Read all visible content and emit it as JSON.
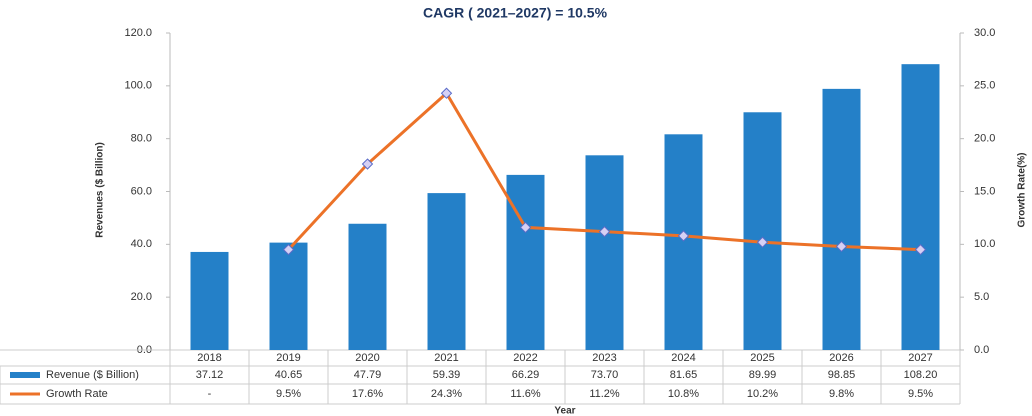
{
  "chart_data": {
    "type": "bar",
    "title": "CAGR ( 2021–2027) = 10.5%",
    "y_label": "Revenues ($ Billion)",
    "y2_label": "Growth Rate(%)",
    "x_label": "Year",
    "categories": [
      "2018",
      "2019",
      "2020",
      "2021",
      "2022",
      "2023",
      "2024",
      "2025",
      "2026",
      "2027"
    ],
    "series": [
      {
        "name": "Revenue ($ Billion)",
        "color": "#2480c8",
        "type": "bar",
        "values": [
          37.12,
          40.65,
          47.79,
          59.39,
          66.29,
          73.7,
          81.65,
          89.99,
          98.85,
          108.2
        ],
        "value_labels": [
          "37.12",
          "40.65",
          "47.79",
          "59.39",
          "66.29",
          "73.70",
          "81.65",
          "89.99",
          "98.85",
          "108.20"
        ]
      },
      {
        "name": "Growth Rate",
        "color": "#ec7228",
        "type": "line",
        "axis": "y2",
        "values": [
          null,
          9.5,
          17.6,
          24.3,
          11.6,
          11.2,
          10.8,
          10.2,
          9.8,
          9.5
        ],
        "value_labels": [
          "-",
          "9.5%",
          "17.6%",
          "24.3%",
          "11.6%",
          "11.2%",
          "10.8%",
          "10.2%",
          "9.8%",
          "9.5%"
        ]
      }
    ],
    "ylim": [
      0,
      120
    ],
    "yticks": [
      {
        "value": 0,
        "label": "0.0"
      },
      {
        "value": 20,
        "label": "20.0"
      },
      {
        "value": 40,
        "label": "40.0"
      },
      {
        "value": 60,
        "label": "60.0"
      },
      {
        "value": 80,
        "label": "80.0"
      },
      {
        "value": 100,
        "label": "100.0"
      },
      {
        "value": 120,
        "label": "120.0"
      }
    ],
    "y2lim": [
      0,
      30
    ],
    "y2ticks": [
      {
        "value": 0,
        "label": "0.0"
      },
      {
        "value": 5,
        "label": "5.0"
      },
      {
        "value": 10,
        "label": "10.0"
      },
      {
        "value": 15,
        "label": "15.0"
      },
      {
        "value": 20,
        "label": "20.0"
      },
      {
        "value": 25,
        "label": "25.0"
      },
      {
        "value": 30,
        "label": "30.0"
      }
    ]
  }
}
